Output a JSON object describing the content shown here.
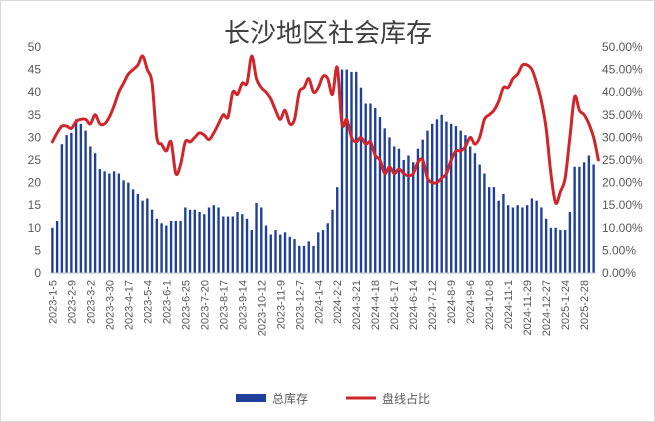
{
  "chart_data": {
    "type": "bar",
    "title": "长沙地区社会库存",
    "y_left": {
      "min": 0,
      "max": 50,
      "step": 5,
      "ticks": [
        "0",
        "5",
        "10",
        "15",
        "20",
        "25",
        "30",
        "35",
        "40",
        "45",
        "50"
      ]
    },
    "y_right": {
      "min": 0,
      "max": 0.5,
      "step": 0.05,
      "ticks": [
        "0.00%",
        "5.00%",
        "10.00%",
        "15.00%",
        "20.00%",
        "25.00%",
        "30.00%",
        "35.00%",
        "40.00%",
        "45.00%",
        "50.00%"
      ]
    },
    "x_tick_labels": [
      {
        "index": 0,
        "label": "2023-1-5"
      },
      {
        "index": 4,
        "label": "2023-2-9"
      },
      {
        "index": 8,
        "label": "2023-3-2"
      },
      {
        "index": 12,
        "label": "2023-3-30"
      },
      {
        "index": 16,
        "label": "2023-4-17"
      },
      {
        "index": 20,
        "label": "2023-5-4"
      },
      {
        "index": 24,
        "label": "2023-6-1"
      },
      {
        "index": 28,
        "label": "2023-6-25"
      },
      {
        "index": 32,
        "label": "2023-7-20"
      },
      {
        "index": 36,
        "label": "2023-8-17"
      },
      {
        "index": 40,
        "label": "2023-9-14"
      },
      {
        "index": 44,
        "label": "2023-10-12"
      },
      {
        "index": 48,
        "label": "2023-11-9"
      },
      {
        "index": 52,
        "label": "2023-12-7"
      },
      {
        "index": 56,
        "label": "2024-1-4"
      },
      {
        "index": 60,
        "label": "2024-2-2"
      },
      {
        "index": 64,
        "label": "2024-3-21"
      },
      {
        "index": 68,
        "label": "2024-4-18"
      },
      {
        "index": 72,
        "label": "2024-5-17"
      },
      {
        "index": 76,
        "label": "2024-6-14"
      },
      {
        "index": 80,
        "label": "2024-7-12"
      },
      {
        "index": 84,
        "label": "2024-8-9"
      },
      {
        "index": 88,
        "label": "2024-9-6"
      },
      {
        "index": 92,
        "label": "2024-10-8"
      },
      {
        "index": 96,
        "label": "2024-11-1"
      },
      {
        "index": 100,
        "label": "2024-11-29"
      },
      {
        "index": 104,
        "label": "2024-12-27"
      },
      {
        "index": 108,
        "label": "2025-1-24"
      },
      {
        "index": 112,
        "label": "2025-2-28"
      }
    ],
    "series": [
      {
        "name": "总库存",
        "type": "bar",
        "axis": "left",
        "color": "#1f3f99",
        "values": [
          10,
          11.5,
          28.5,
          30.5,
          31,
          34,
          33,
          31.5,
          28,
          26.5,
          23,
          22.5,
          22,
          22.5,
          22,
          20.5,
          20,
          18.5,
          17.5,
          16,
          16.5,
          14,
          12,
          11,
          10.5,
          11.5,
          11.5,
          11.5,
          14.5,
          14,
          14,
          13.5,
          13,
          14.5,
          15,
          14.5,
          12.5,
          12.5,
          12.5,
          13.5,
          13,
          12,
          9.5,
          15.5,
          14.5,
          10.5,
          8.5,
          9.5,
          8.5,
          9,
          8,
          7.5,
          6,
          6,
          7,
          6,
          9,
          9.5,
          11,
          14,
          19,
          45,
          45,
          44.5,
          44.5,
          41,
          37.5,
          37.5,
          36.5,
          34.5,
          32,
          30,
          28,
          27.5,
          25,
          26,
          24.5,
          27.5,
          29.5,
          31.5,
          33,
          34,
          35,
          33.5,
          33,
          32.5,
          31.5,
          30.5,
          28,
          26.5,
          24,
          22,
          19,
          19,
          16,
          17.5,
          15,
          14.5,
          15,
          14.5,
          15,
          16.5,
          16,
          14.5,
          12,
          10,
          10,
          9.5,
          9.5,
          13.5,
          23.5,
          23.5,
          24.5,
          26,
          24
        ]
      },
      {
        "name": "盘线占比",
        "type": "line",
        "axis": "right",
        "color": "#d0262b",
        "values": [
          0.29,
          0.31,
          0.325,
          0.325,
          0.32,
          0.335,
          0.34,
          0.34,
          0.33,
          0.35,
          0.33,
          0.33,
          0.345,
          0.37,
          0.4,
          0.42,
          0.44,
          0.45,
          0.46,
          0.48,
          0.45,
          0.42,
          0.3,
          0.285,
          0.27,
          0.29,
          0.22,
          0.24,
          0.29,
          0.29,
          0.3,
          0.31,
          0.305,
          0.295,
          0.31,
          0.33,
          0.35,
          0.345,
          0.4,
          0.395,
          0.42,
          0.42,
          0.48,
          0.43,
          0.41,
          0.4,
          0.385,
          0.36,
          0.34,
          0.36,
          0.33,
          0.34,
          0.4,
          0.41,
          0.43,
          0.4,
          0.41,
          0.435,
          0.43,
          0.395,
          0.455,
          0.33,
          0.34,
          0.3,
          0.29,
          0.3,
          0.285,
          0.29,
          0.26,
          0.25,
          0.22,
          0.235,
          0.22,
          0.23,
          0.22,
          0.215,
          0.22,
          0.245,
          0.25,
          0.21,
          0.2,
          0.2,
          0.21,
          0.22,
          0.25,
          0.27,
          0.27,
          0.28,
          0.3,
          0.285,
          0.3,
          0.34,
          0.35,
          0.36,
          0.38,
          0.41,
          0.41,
          0.43,
          0.44,
          0.46,
          0.46,
          0.45,
          0.42,
          0.38,
          0.32,
          0.22,
          0.155,
          0.18,
          0.21,
          0.3,
          0.39,
          0.36,
          0.35,
          0.33,
          0.3,
          0.25
        ]
      }
    ],
    "legend": {
      "position": "bottom",
      "entries": [
        "总库存",
        "盘线占比"
      ]
    },
    "grid": false
  }
}
